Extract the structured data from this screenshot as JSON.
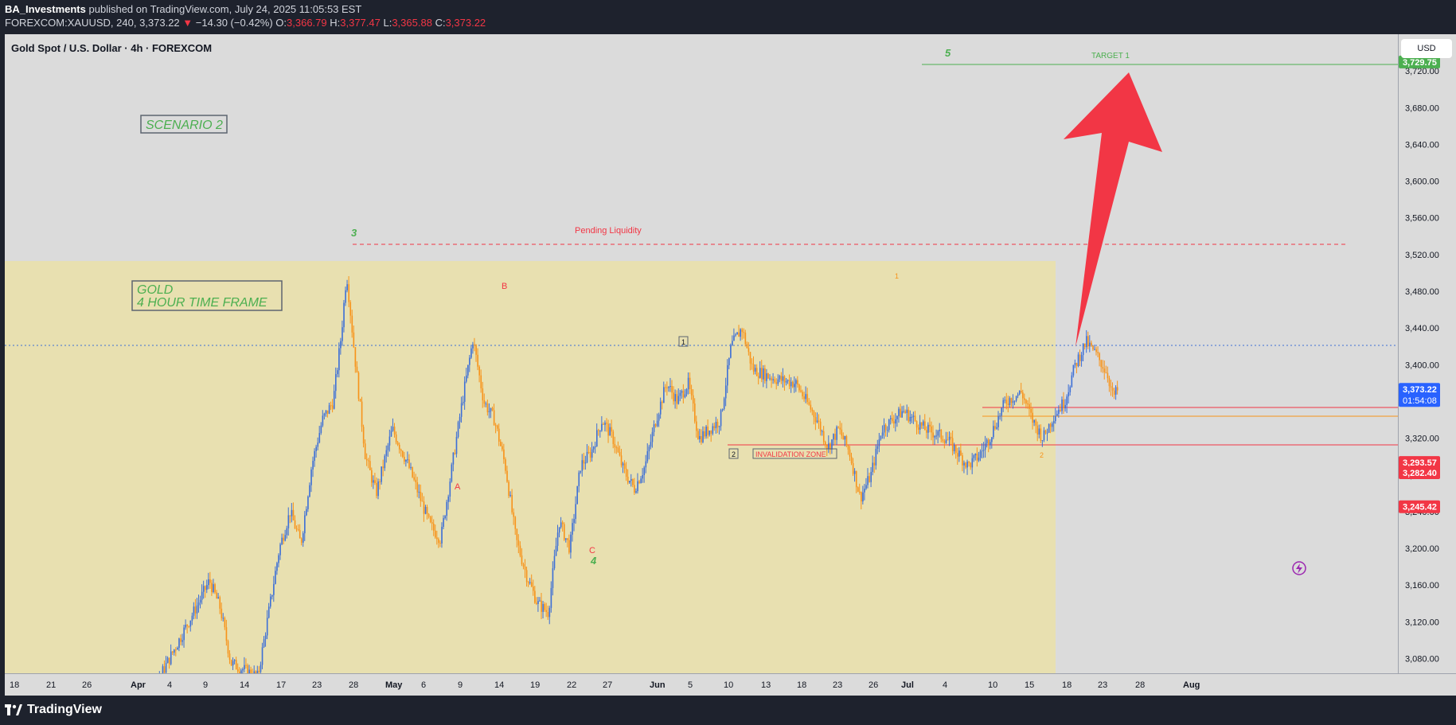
{
  "header": {
    "author": "BA_Investments",
    "published_text": "published on TradingView.com, July 24, 2025 11:05:53 EST",
    "symbol_line": "FOREXCOM:XAUUSD, 240",
    "last_price": "3,373.22",
    "change_arrow": "▼",
    "change": "−14.30 (−0.42%)",
    "o_label": "O:",
    "o_value": "3,366.79",
    "h_label": "H:",
    "h_value": "3,377.47",
    "l_label": "L:",
    "l_value": "3,365.88",
    "c_label": "C:",
    "c_value": "3,373.22"
  },
  "chart_title": "Gold Spot / U.S. Dollar · 4h · FOREXCOM",
  "currency_button": "USD",
  "footer": {
    "logo_text": "TradingView"
  },
  "colors": {
    "bull": "#3d6fd6",
    "bear": "#f7931a",
    "zone": "#e8e0b0",
    "accent_red": "#f23645",
    "green": "#4caf50",
    "arrow": "#f23645"
  },
  "annotations": {
    "scenario": "SCENARIO 2",
    "gold_line1": "GOLD",
    "gold_line2": "4 HOUR TIME FRAME",
    "wave3": "3",
    "wave4": "4",
    "wave5": "5",
    "waveA": "A",
    "waveB": "B",
    "waveC": "C",
    "box1": "1",
    "box2": "2",
    "small1": "1",
    "small2": "2",
    "pending": "Pending Liquidity",
    "invalidation": "INVALIDATION ZONE",
    "target": "TARGET 1"
  },
  "price_labels": {
    "target": "3,729.75",
    "current": "3,373.22",
    "countdown": "01:54:08",
    "level1": "3,293.57",
    "level2": "3,282.40",
    "level3": "3,245.42"
  },
  "chart_data": {
    "type": "candlestick",
    "title": "Gold Spot / U.S. Dollar · 4h · FOREXCOM",
    "ylim": [
      3064,
      3760
    ],
    "y_ticks": [
      "3,720.00",
      "3,680.00",
      "3,640.00",
      "3,600.00",
      "3,560.00",
      "3,520.00",
      "3,480.00",
      "3,440.00",
      "3,400.00",
      "3,360.00",
      "3,320.00",
      "3,280.00",
      "3,240.00",
      "3,200.00",
      "3,160.00",
      "3,120.00",
      "3,080.00"
    ],
    "x_ticks": [
      "18",
      "21",
      "26",
      "Apr",
      "4",
      "9",
      "14",
      "17",
      "23",
      "28",
      "May",
      "6",
      "9",
      "14",
      "19",
      "22",
      "27",
      "Jun",
      "5",
      "10",
      "13",
      "18",
      "23",
      "26",
      "Jul",
      "4",
      "10",
      "15",
      "18",
      "23",
      "28",
      "Aug"
    ],
    "levels": {
      "target_1": 3729.75,
      "pending_liquidity": 3500,
      "current": 3373.22,
      "support_1": 3293.57,
      "support_2": 3282.4,
      "invalidation": 3245.42
    },
    "price_path": [
      [
        0,
        3050
      ],
      [
        8,
        3040
      ],
      [
        12,
        3085
      ],
      [
        16,
        3130
      ],
      [
        19,
        3165
      ],
      [
        21,
        3135
      ],
      [
        23,
        3075
      ],
      [
        28,
        3060
      ],
      [
        30,
        3130
      ],
      [
        32,
        3200
      ],
      [
        34,
        3240
      ],
      [
        36,
        3205
      ],
      [
        38,
        3290
      ],
      [
        40,
        3340
      ],
      [
        42,
        3360
      ],
      [
        43.5,
        3432
      ],
      [
        44.5,
        3500
      ],
      [
        46,
        3410
      ],
      [
        48,
        3300
      ],
      [
        50,
        3260
      ],
      [
        53,
        3330
      ],
      [
        56,
        3290
      ],
      [
        60,
        3225
      ],
      [
        62,
        3210
      ],
      [
        64,
        3285
      ],
      [
        66,
        3360
      ],
      [
        68,
        3428
      ],
      [
        70,
        3360
      ],
      [
        72,
        3340
      ],
      [
        74,
        3290
      ],
      [
        76,
        3210
      ],
      [
        78,
        3170
      ],
      [
        80,
        3140
      ],
      [
        82,
        3130
      ],
      [
        84,
        3230
      ],
      [
        86,
        3200
      ],
      [
        88,
        3290
      ],
      [
        90,
        3305
      ],
      [
        92,
        3340
      ],
      [
        94,
        3320
      ],
      [
        96,
        3285
      ],
      [
        98,
        3265
      ],
      [
        100,
        3290
      ],
      [
        102,
        3340
      ],
      [
        104,
        3380
      ],
      [
        106,
        3360
      ],
      [
        108,
        3380
      ],
      [
        110,
        3320
      ],
      [
        112,
        3330
      ],
      [
        114,
        3340
      ],
      [
        116,
        3420
      ],
      [
        118,
        3440
      ],
      [
        120,
        3395
      ],
      [
        124,
        3385
      ],
      [
        128,
        3380
      ],
      [
        132,
        3340
      ],
      [
        134,
        3310
      ],
      [
        136,
        3330
      ],
      [
        138,
        3305
      ],
      [
        140,
        3255
      ],
      [
        142,
        3280
      ],
      [
        144,
        3330
      ],
      [
        148,
        3350
      ],
      [
        152,
        3330
      ],
      [
        156,
        3320
      ],
      [
        160,
        3290
      ],
      [
        162,
        3300
      ],
      [
        164,
        3320
      ],
      [
        167,
        3360
      ],
      [
        170,
        3370
      ],
      [
        172,
        3340
      ],
      [
        174,
        3320
      ],
      [
        176,
        3345
      ],
      [
        178,
        3360
      ],
      [
        180,
        3400
      ],
      [
        182,
        3425
      ],
      [
        184,
        3410
      ],
      [
        186,
        3390
      ],
      [
        187,
        3365
      ],
      [
        188,
        3373
      ]
    ]
  }
}
